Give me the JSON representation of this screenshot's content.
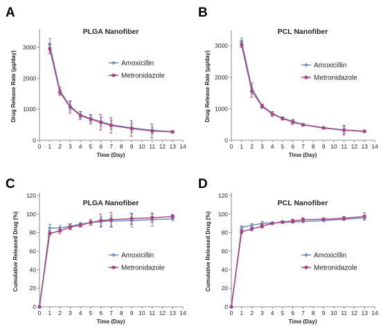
{
  "colors": {
    "amoxicillin": "#6a8cbf",
    "metronidazole": "#a3467f",
    "axis": "#888888"
  },
  "chart_data": [
    {
      "panel": "A",
      "type": "line",
      "title": "PLGA Nanofiber",
      "xlabel": "Time (Day)",
      "ylabel": "Drug Release Rate (µg/day)",
      "xlim": [
        0,
        14
      ],
      "ylim": [
        0,
        3500
      ],
      "xticks": [
        0,
        1,
        2,
        3,
        4,
        5,
        6,
        7,
        8,
        9,
        10,
        11,
        12,
        13,
        14
      ],
      "yticks": [
        0,
        1000,
        2000,
        3000
      ],
      "legend_position": "right",
      "x": [
        1,
        2,
        3,
        4,
        5,
        6,
        7,
        9,
        11,
        13
      ],
      "series": [
        {
          "name": "Amoxicillin",
          "color_key": "amoxicillin",
          "marker": "diamond",
          "values": [
            3100,
            1600,
            1100,
            820,
            700,
            600,
            500,
            400,
            320,
            280
          ],
          "errors": [
            180,
            120,
            150,
            100,
            120,
            150,
            150,
            150,
            120,
            30
          ]
        },
        {
          "name": "Metronidazole",
          "color_key": "metronidazole",
          "marker": "square",
          "values": [
            2950,
            1550,
            1070,
            800,
            680,
            580,
            480,
            380,
            300,
            270
          ],
          "errors": [
            150,
            100,
            200,
            130,
            150,
            250,
            250,
            250,
            230,
            30
          ]
        }
      ]
    },
    {
      "panel": "B",
      "type": "line",
      "title": "PCL Nanofiber",
      "xlabel": "Time (Day)",
      "ylabel": "Drug Release Rate (µg/day)",
      "xlim": [
        0,
        14
      ],
      "ylim": [
        0,
        3400
      ],
      "xticks": [
        0,
        1,
        2,
        3,
        4,
        5,
        6,
        7,
        8,
        9,
        10,
        11,
        12,
        13,
        14
      ],
      "yticks": [
        0,
        1000,
        2000,
        3000
      ],
      "legend_position": "right",
      "x": [
        1,
        2,
        3,
        4,
        5,
        6,
        7,
        9,
        11,
        13
      ],
      "series": [
        {
          "name": "Amoxicillin",
          "color_key": "amoxicillin",
          "marker": "diamond",
          "values": [
            3150,
            1650,
            1100,
            850,
            700,
            600,
            500,
            400,
            330,
            290
          ],
          "errors": [
            100,
            180,
            50,
            60,
            40,
            60,
            30,
            30,
            120,
            30
          ]
        },
        {
          "name": "Metronidazole",
          "color_key": "metronidazole",
          "marker": "square",
          "values": [
            3030,
            1560,
            1080,
            830,
            690,
            580,
            490,
            390,
            320,
            280
          ],
          "errors": [
            80,
            200,
            60,
            80,
            50,
            80,
            40,
            30,
            150,
            40
          ]
        }
      ]
    },
    {
      "panel": "C",
      "type": "line",
      "title": "PLGA Nanofiber",
      "xlabel": "Time (Day)",
      "ylabel": "Cumulative Released Drug (%)",
      "xlim": [
        0,
        14
      ],
      "ylim": [
        0,
        120
      ],
      "xticks": [
        0,
        1,
        2,
        3,
        4,
        5,
        6,
        7,
        8,
        9,
        10,
        11,
        12,
        13,
        14
      ],
      "yticks": [
        0,
        20,
        40,
        60,
        80,
        100,
        120
      ],
      "legend_position": "right",
      "x": [
        0,
        1,
        2,
        3,
        4,
        5,
        6,
        7,
        9,
        11,
        13
      ],
      "series": [
        {
          "name": "Amoxicillin",
          "color_key": "amoxicillin",
          "marker": "diamond",
          "values": [
            0,
            85,
            85,
            87,
            89,
            91,
            92,
            92.5,
            93,
            94,
            95
          ],
          "errors": [
            0,
            4,
            3,
            3,
            2,
            3,
            5,
            6,
            7,
            7,
            2
          ]
        },
        {
          "name": "Metronidazole",
          "color_key": "metronidazole",
          "marker": "square",
          "values": [
            0,
            79,
            82,
            86,
            88,
            91,
            93,
            94,
            95,
            96,
            97.5
          ],
          "errors": [
            0,
            3,
            3,
            3,
            2,
            3,
            7,
            8,
            6,
            5,
            2
          ]
        }
      ]
    },
    {
      "panel": "D",
      "type": "line",
      "title": "PCL Nanofiber",
      "xlabel": "Time (Day)",
      "ylabel": "Cumulative Released Drug (%)",
      "xlim": [
        0,
        14
      ],
      "ylim": [
        0,
        120
      ],
      "xticks": [
        0,
        1,
        2,
        3,
        4,
        5,
        6,
        7,
        8,
        9,
        10,
        11,
        12,
        13,
        14
      ],
      "yticks": [
        0,
        20,
        40,
        60,
        80,
        100,
        120
      ],
      "legend_position": "right",
      "x": [
        0,
        1,
        2,
        3,
        4,
        5,
        6,
        7,
        9,
        11,
        13
      ],
      "series": [
        {
          "name": "Amoxicillin",
          "color_key": "amoxicillin",
          "marker": "diamond",
          "values": [
            0,
            85.5,
            88,
            90,
            90.5,
            91,
            91.5,
            92,
            93,
            94.5,
            96
          ],
          "errors": [
            0,
            2,
            2,
            2,
            1,
            1,
            1,
            1,
            1,
            1,
            2
          ]
        },
        {
          "name": "Metronidazole",
          "color_key": "metronidazole",
          "marker": "square",
          "values": [
            0,
            81,
            84,
            87,
            90,
            91.5,
            92.5,
            94,
            94.5,
            95.5,
            97.5
          ],
          "errors": [
            0,
            2,
            2,
            2,
            1,
            1,
            2,
            2,
            1,
            2,
            4
          ]
        }
      ]
    }
  ]
}
